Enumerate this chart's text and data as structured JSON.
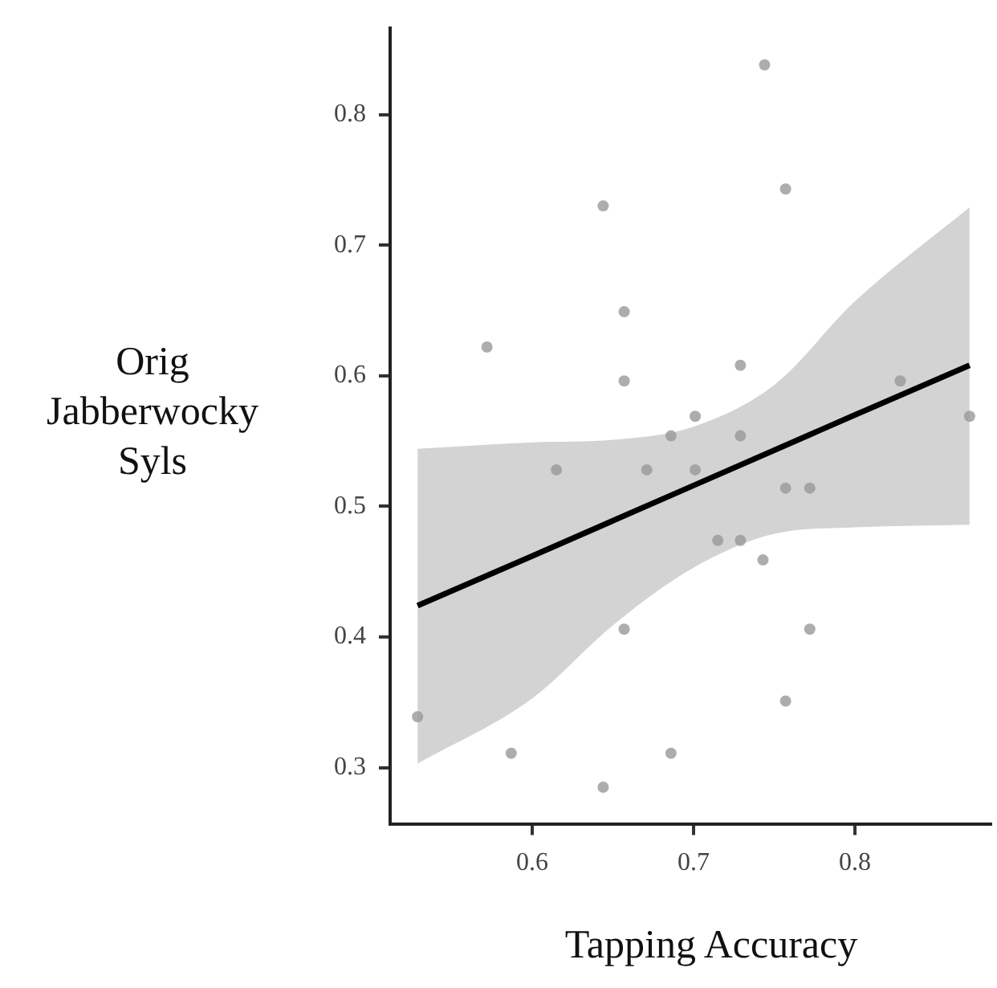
{
  "chart_data": {
    "type": "scatter",
    "xlabel": "Tapping Accuracy",
    "ylabel": "Orig Jabberwocky Syls",
    "xlim": [
      0.512,
      0.884
    ],
    "xticks": [
      0.6,
      0.7,
      0.8
    ],
    "ylim": [
      0.257,
      0.866
    ],
    "yticks": [
      0.3,
      0.4,
      0.5,
      0.6,
      0.7,
      0.8
    ],
    "grid": false,
    "legend": false,
    "marker": "circle",
    "series": [
      {
        "type": "scatter",
        "color": "#999999",
        "x": [
          0.744,
          0.757,
          0.644,
          0.657,
          0.572,
          0.657,
          0.729,
          0.828,
          0.871,
          0.701,
          0.686,
          0.729,
          0.615,
          0.671,
          0.701,
          0.757,
          0.772,
          0.715,
          0.729,
          0.743,
          0.657,
          0.772,
          0.757,
          0.529,
          0.587,
          0.686,
          0.644
        ],
        "values": [
          0.838,
          0.743,
          0.73,
          0.649,
          0.622,
          0.596,
          0.608,
          0.596,
          0.569,
          0.569,
          0.554,
          0.554,
          0.528,
          0.528,
          0.528,
          0.514,
          0.514,
          0.474,
          0.474,
          0.459,
          0.406,
          0.406,
          0.351,
          0.339,
          0.311,
          0.311,
          0.285
        ]
      },
      {
        "type": "line",
        "color": "#000000",
        "marker": "none",
        "x": [
          0.529,
          0.6,
          0.65,
          0.7,
          0.75,
          0.8,
          0.871
        ],
        "values": [
          0.424,
          0.462,
          0.489,
          0.516,
          0.543,
          0.57,
          0.608
        ],
        "lower": [
          0.303,
          0.353,
          0.409,
          0.453,
          0.479,
          0.484,
          0.486
        ],
        "upper": [
          0.544,
          0.549,
          0.551,
          0.561,
          0.593,
          0.657,
          0.729
        ]
      }
    ]
  }
}
